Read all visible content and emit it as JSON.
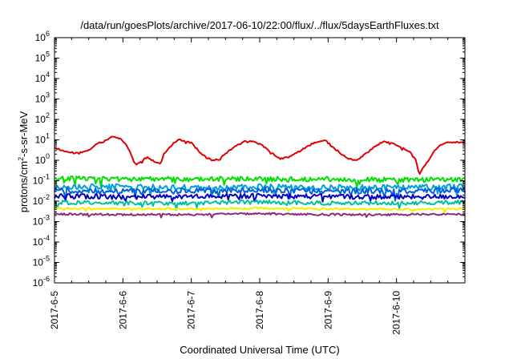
{
  "chart_data": {
    "type": "line",
    "title": "/data/run/goesPlots/archive/2017-06-10/22:00/flux/../flux/5daysEarthFluxes.txt",
    "xlabel": "Coordinated Universal Time (UTC)",
    "ylabel_parts": [
      "protons/cm",
      "2",
      "-s-sr-MeV"
    ],
    "yscale": "log",
    "ylim_exp": [
      -6,
      6
    ],
    "y_ticks": [
      {
        "base": "10",
        "exp": "-6",
        "e": -6
      },
      {
        "base": "10",
        "exp": "-5",
        "e": -5
      },
      {
        "base": "10",
        "exp": "-4",
        "e": -4
      },
      {
        "base": "10",
        "exp": "-3",
        "e": -3
      },
      {
        "base": "10",
        "exp": "-2",
        "e": -2
      },
      {
        "base": "10",
        "exp": "-1",
        "e": -1
      },
      {
        "base": "10",
        "exp": "0",
        "e": 0
      },
      {
        "base": "10",
        "exp": "1",
        "e": 1
      },
      {
        "base": "10",
        "exp": "2",
        "e": 2
      },
      {
        "base": "10",
        "exp": "3",
        "e": 3
      },
      {
        "base": "10",
        "exp": "4",
        "e": 4
      },
      {
        "base": "10",
        "exp": "5",
        "e": 5
      },
      {
        "base": "10",
        "exp": "6",
        "e": 6
      }
    ],
    "x_range_days": [
      0,
      6.0
    ],
    "x_ticks": [
      {
        "label": "2017-6-5",
        "d": 0
      },
      {
        "label": "2017-6-6",
        "d": 1
      },
      {
        "label": "2017-6-7",
        "d": 2
      },
      {
        "label": "2017-6-8",
        "d": 3
      },
      {
        "label": "2017-6-9",
        "d": 4
      },
      {
        "label": "2017-6-10",
        "d": 5
      }
    ],
    "grid": false,
    "legend": "none",
    "series": [
      {
        "color": "#e00000",
        "noise": 0.04,
        "points": [
          [
            0.0,
            4
          ],
          [
            0.2,
            2.5
          ],
          [
            0.35,
            2.2
          ],
          [
            0.5,
            3
          ],
          [
            0.6,
            6
          ],
          [
            0.75,
            9
          ],
          [
            0.85,
            15
          ],
          [
            0.95,
            12
          ],
          [
            1.05,
            6
          ],
          [
            1.12,
            2
          ],
          [
            1.18,
            0.7
          ],
          [
            1.25,
            0.8
          ],
          [
            1.35,
            1.4
          ],
          [
            1.45,
            0.9
          ],
          [
            1.55,
            0.7
          ],
          [
            1.6,
            2
          ],
          [
            1.7,
            5
          ],
          [
            1.8,
            10
          ],
          [
            1.9,
            9
          ],
          [
            2.0,
            7
          ],
          [
            2.1,
            3
          ],
          [
            2.2,
            1.5
          ],
          [
            2.3,
            1.0
          ],
          [
            2.4,
            1.1
          ],
          [
            2.5,
            2
          ],
          [
            2.6,
            4
          ],
          [
            2.75,
            8
          ],
          [
            2.9,
            9
          ],
          [
            3.05,
            5
          ],
          [
            3.2,
            2
          ],
          [
            3.3,
            1.2
          ],
          [
            3.45,
            1.5
          ],
          [
            3.6,
            3
          ],
          [
            3.75,
            6
          ],
          [
            3.85,
            8
          ],
          [
            3.95,
            10
          ],
          [
            4.05,
            5
          ],
          [
            4.2,
            2
          ],
          [
            4.3,
            1.2
          ],
          [
            4.4,
            1.0
          ],
          [
            4.5,
            1.5
          ],
          [
            4.65,
            4
          ],
          [
            4.8,
            8
          ],
          [
            4.95,
            7
          ],
          [
            5.1,
            4
          ],
          [
            5.2,
            2.5
          ],
          [
            5.28,
            1
          ],
          [
            5.33,
            0.2
          ],
          [
            5.38,
            0.4
          ],
          [
            5.45,
            0.8
          ],
          [
            5.55,
            3
          ],
          [
            5.65,
            6
          ],
          [
            5.8,
            8
          ],
          [
            6.0,
            7
          ]
        ]
      },
      {
        "color": "#00e000",
        "noise": 0.12,
        "points": [
          [
            0,
            0.13
          ],
          [
            1,
            0.12
          ],
          [
            2,
            0.12
          ],
          [
            3,
            0.12
          ],
          [
            4,
            0.12
          ],
          [
            5,
            0.11
          ],
          [
            6,
            0.11
          ]
        ]
      },
      {
        "color": "#00a0e0",
        "noise": 0.14,
        "points": [
          [
            0,
            0.05
          ],
          [
            1,
            0.05
          ],
          [
            2,
            0.045
          ],
          [
            3,
            0.05
          ],
          [
            4,
            0.045
          ],
          [
            5,
            0.045
          ],
          [
            6,
            0.05
          ]
        ]
      },
      {
        "color": "#0060e0",
        "noise": 0.14,
        "points": [
          [
            0,
            0.035
          ],
          [
            1,
            0.03
          ],
          [
            2,
            0.032
          ],
          [
            3,
            0.035
          ],
          [
            4,
            0.032
          ],
          [
            5,
            0.03
          ],
          [
            6,
            0.035
          ]
        ]
      },
      {
        "color": "#0000c0",
        "noise": 0.12,
        "points": [
          [
            0,
            0.018
          ],
          [
            1,
            0.016
          ],
          [
            2,
            0.017
          ],
          [
            3,
            0.018
          ],
          [
            4,
            0.017
          ],
          [
            5,
            0.016
          ],
          [
            6,
            0.017
          ]
        ]
      },
      {
        "color": "#00c0a0",
        "noise": 0.1,
        "points": [
          [
            0,
            0.009
          ],
          [
            1,
            0.008
          ],
          [
            2,
            0.008
          ],
          [
            3,
            0.009
          ],
          [
            4,
            0.008
          ],
          [
            5,
            0.008
          ],
          [
            6,
            0.009
          ]
        ]
      },
      {
        "color": "#f0f000",
        "noise": 0.05,
        "points": [
          [
            0,
            0.0045
          ],
          [
            1,
            0.0042
          ],
          [
            2,
            0.0042
          ],
          [
            3,
            0.0045
          ],
          [
            4,
            0.0042
          ],
          [
            5,
            0.004
          ],
          [
            6,
            0.0042
          ]
        ]
      },
      {
        "color": "#8b2c80",
        "noise": 0.05,
        "points": [
          [
            0,
            0.0023
          ],
          [
            1,
            0.0022
          ],
          [
            2,
            0.0022
          ],
          [
            3,
            0.0024
          ],
          [
            4,
            0.0022
          ],
          [
            5,
            0.0022
          ],
          [
            6,
            0.0023
          ]
        ]
      }
    ]
  }
}
